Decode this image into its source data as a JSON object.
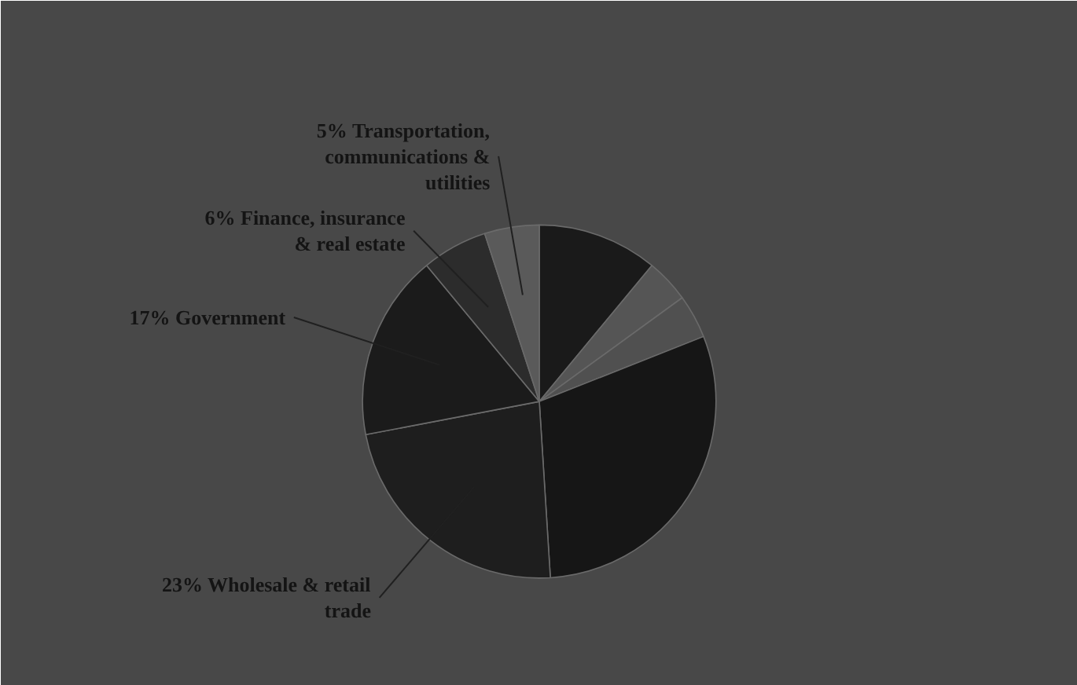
{
  "chart_data": {
    "type": "pie",
    "categories": [
      null,
      null,
      null,
      null,
      "23% Wholesale & retail trade",
      "17% Government",
      "6% Finance, insurance & real estate",
      "5% Transportation, communications & utilities"
    ],
    "values": [
      11,
      4,
      4,
      30,
      23,
      17,
      6,
      5
    ],
    "colors": [
      "#1a1a1a",
      "#555555",
      "#505050",
      "#161616",
      "#1e1e1e",
      "#1b1b1b",
      "#2c2c2c",
      "#5a5a5a"
    ]
  }
}
